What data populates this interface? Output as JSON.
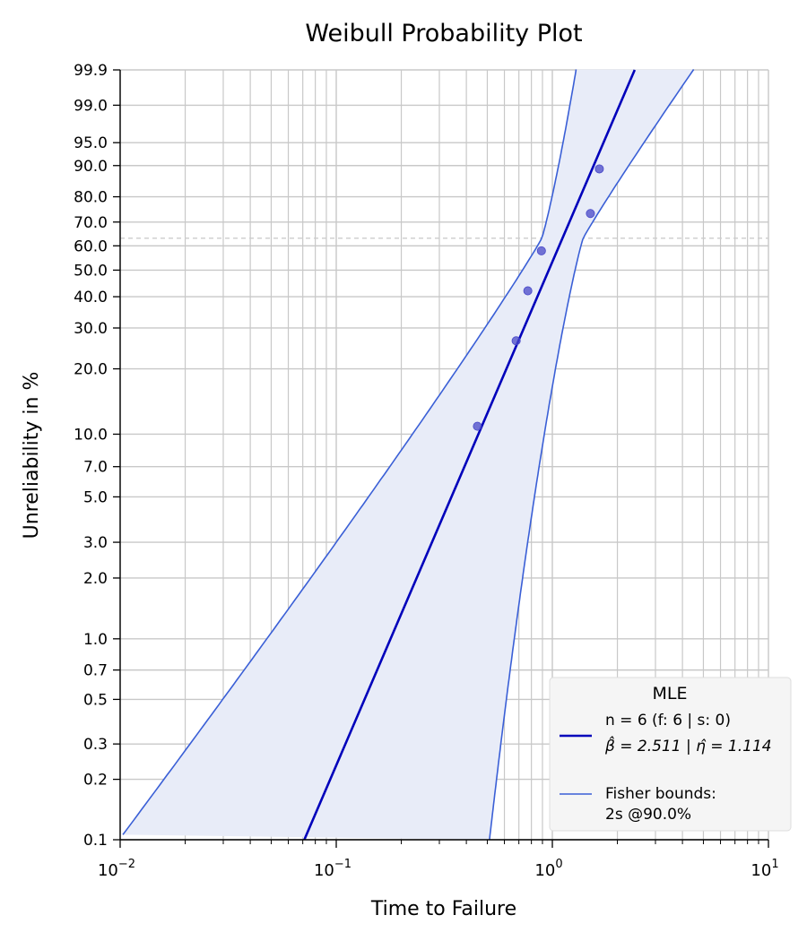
{
  "chart_data": {
    "type": "scatter",
    "title": "Weibull Probability Plot",
    "xlabel": "Time to Failure",
    "ylabel": "Unreliability in %",
    "x_scale": "log",
    "y_scale": "weibull",
    "xlim": [
      0.01,
      10
    ],
    "ylim": [
      0.1,
      99.9
    ],
    "grid": true,
    "x_ticks": [
      {
        "value": 0.01,
        "base": "10",
        "exp": "−2"
      },
      {
        "value": 0.1,
        "base": "10",
        "exp": "−1"
      },
      {
        "value": 1,
        "base": "10",
        "exp": "0"
      },
      {
        "value": 10,
        "base": "10",
        "exp": "1"
      }
    ],
    "y_ticks": [
      {
        "value": 0.1,
        "label": "0.1"
      },
      {
        "value": 0.2,
        "label": "0.2"
      },
      {
        "value": 0.3,
        "label": "0.3"
      },
      {
        "value": 0.5,
        "label": "0.5"
      },
      {
        "value": 0.7,
        "label": "0.7"
      },
      {
        "value": 1.0,
        "label": "1.0"
      },
      {
        "value": 2.0,
        "label": "2.0"
      },
      {
        "value": 3.0,
        "label": "3.0"
      },
      {
        "value": 5.0,
        "label": "5.0"
      },
      {
        "value": 7.0,
        "label": "7.0"
      },
      {
        "value": 10.0,
        "label": "10.0"
      },
      {
        "value": 20.0,
        "label": "20.0"
      },
      {
        "value": 30.0,
        "label": "30.0"
      },
      {
        "value": 40.0,
        "label": "40.0"
      },
      {
        "value": 50.0,
        "label": "50.0"
      },
      {
        "value": 60.0,
        "label": "60.0"
      },
      {
        "value": 70.0,
        "label": "70.0"
      },
      {
        "value": 80.0,
        "label": "80.0"
      },
      {
        "value": 90.0,
        "label": "90.0"
      },
      {
        "value": 95.0,
        "label": "95.0"
      },
      {
        "value": 99.0,
        "label": "99.0"
      },
      {
        "value": 99.9,
        "label": "99.9"
      }
    ],
    "points": [
      {
        "x": 0.45,
        "y": 10.9
      },
      {
        "x": 0.68,
        "y": 26.5
      },
      {
        "x": 0.77,
        "y": 42.1
      },
      {
        "x": 0.89,
        "y": 57.9
      },
      {
        "x": 1.5,
        "y": 73.5
      },
      {
        "x": 1.65,
        "y": 89.1
      }
    ],
    "fit": {
      "beta": 2.511,
      "eta": 1.114
    },
    "bounds": {
      "confidence": 0.9
    },
    "reference_line_y": 63.2,
    "legend": {
      "position": "bottom-right",
      "title": "MLE",
      "fit_label_line1": "n = 6 (f: 6 | s: 0)",
      "fit_label_line2": "β̂ = 2.511 | η̂ = 1.114",
      "bounds_label_line1": "Fisher bounds:",
      "bounds_label_line2": "2s @90.0%"
    },
    "colors": {
      "fit_line": "#0000bb",
      "bounds_line": "#3a5fd6",
      "bounds_fill": "#e8ecf8",
      "points": "#4848c8",
      "grid": "#c8c8c8",
      "reference_line": "#cccccc"
    }
  }
}
